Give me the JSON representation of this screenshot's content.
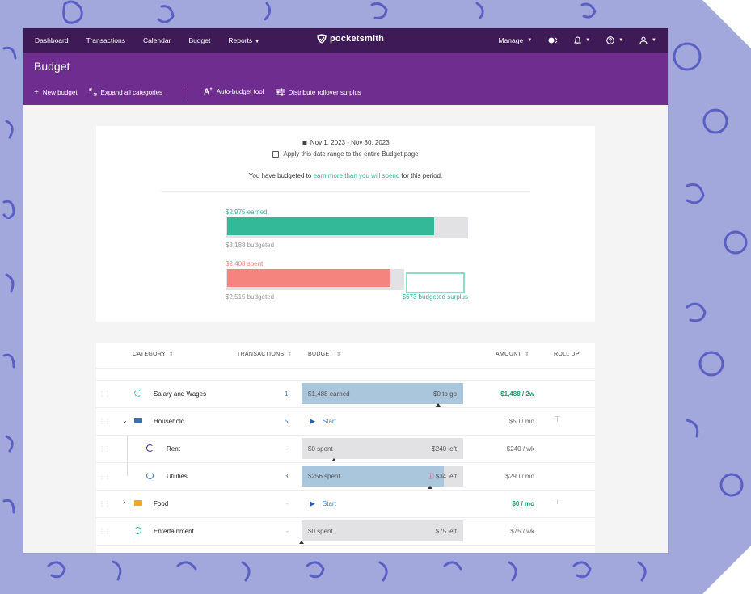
{
  "nav": {
    "items": [
      "Dashboard",
      "Transactions",
      "Calendar",
      "Budget",
      "Reports"
    ],
    "reports_caret": "▾",
    "logo_text": "pocketsmith",
    "manage_label": "Manage"
  },
  "header": {
    "title": "Budget",
    "toolbar": {
      "new_budget": "New budget",
      "expand_all": "Expand all categories",
      "auto_budget": "Auto-budget tool",
      "distribute": "Distribute rollover surplus"
    }
  },
  "summary": {
    "date_range": "Nov 1, 2023 - Nov 30, 2023",
    "apply_label": "Apply this date range to the entire Budget page",
    "apply_checked": false,
    "msg_prefix": "You have budgeted to ",
    "msg_highlight": "earn more than you will spend",
    "msg_suffix": " for this period.",
    "earned_label": "$2,975 earned",
    "earned_budgeted": "$3,188 budgeted",
    "earned_value": 2975,
    "earned_budget_value": 3188,
    "spent_label": "$2,408 spent",
    "spent_budgeted": "$2,515 budgeted",
    "spent_value": 2408,
    "spent_budget_value": 2515,
    "surplus_label": "$673 budgeted surplus",
    "surplus_value": 673,
    "colors": {
      "earned": "#33b898",
      "spent": "#f5847f",
      "surplus_border": "#8ed9c7",
      "highlight": "#2fb596"
    }
  },
  "table": {
    "headers": {
      "category": "CATEGORY",
      "transactions": "TRANSACTIONS",
      "budget": "BUDGET",
      "amount": "AMOUNT",
      "rollup": "ROLL UP"
    },
    "rows": [
      {
        "name": "Salary and Wages",
        "transactions": "1",
        "bar_left": "$1,488 earned",
        "bar_right": "$0 to go",
        "amount": "$1,488 / 2w",
        "amount_color": "#1f9e6a",
        "ring_color": "#2fb596"
      },
      {
        "name": "Household",
        "transactions": "5",
        "start": "Start",
        "amount": "$50 / mo",
        "folder_color": "#3b6fb6",
        "expander": "⌄"
      },
      {
        "name": "Rent",
        "transactions": "-",
        "bar_left": "$0 spent",
        "bar_right": "$240 left",
        "amount": "$240 / wk",
        "ring_color": "#4a2a8a"
      },
      {
        "name": "Utilities",
        "transactions": "3",
        "bar_left": "$256 spent",
        "bar_right": "$34 left",
        "amount": "$290 / mo",
        "ring_color": "#3b6fb6",
        "warn_icon": "ⓘ"
      },
      {
        "name": "Food",
        "transactions": "-",
        "start": "Start",
        "amount": "$0 / mo",
        "amount_color": "#1f9e6a",
        "folder_color": "#f5a623",
        "expander": "›"
      },
      {
        "name": "Entertainment",
        "transactions": "-",
        "bar_left": "$0 spent",
        "bar_right": "$75 left",
        "amount": "$75 / wk",
        "ring_color": "#2fb596"
      }
    ]
  }
}
